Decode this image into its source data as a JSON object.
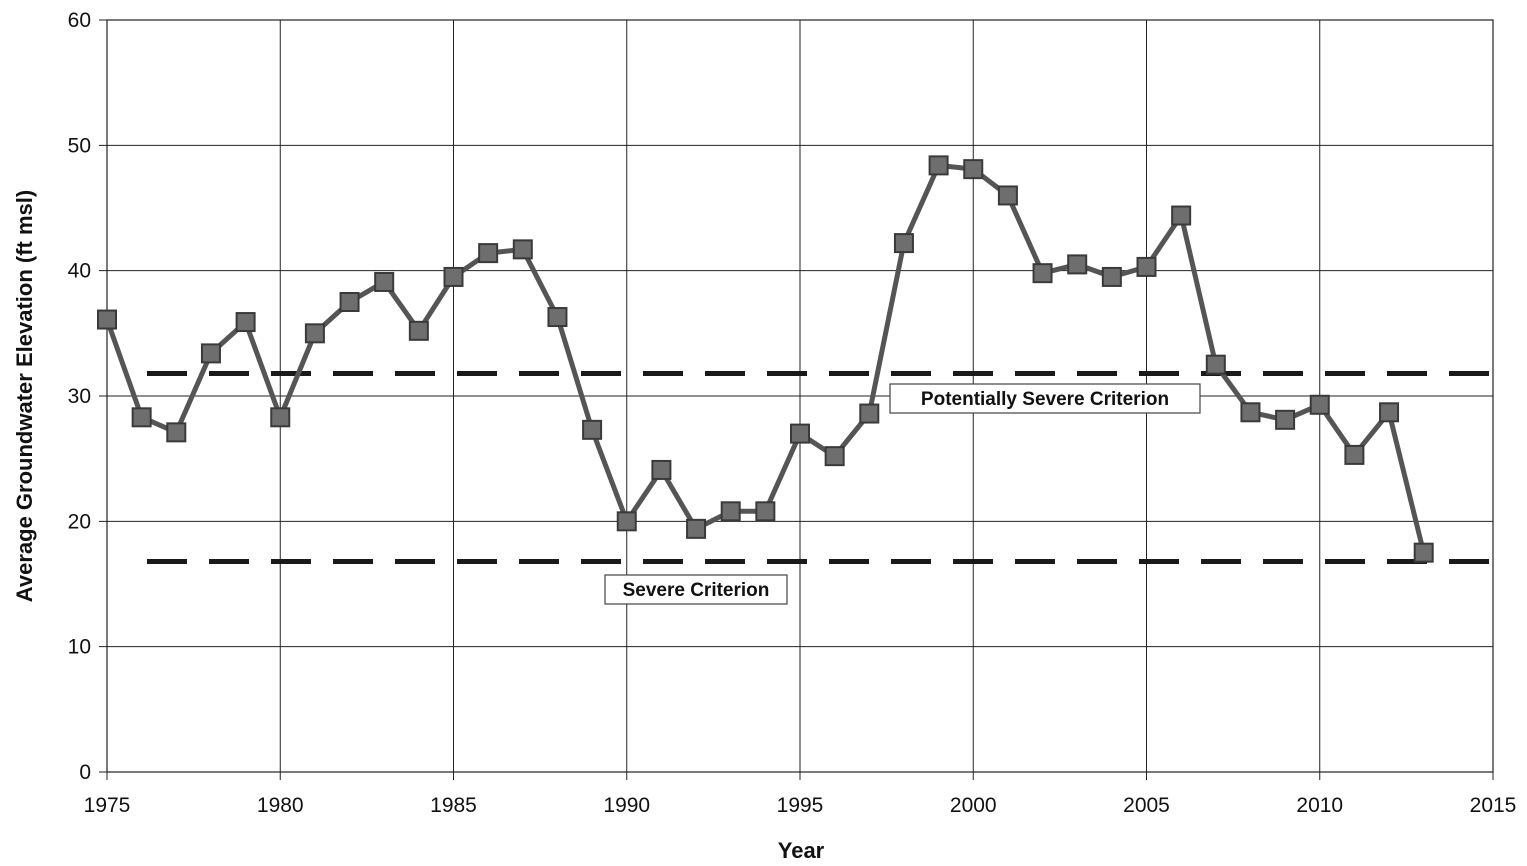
{
  "chart_data": {
    "type": "line",
    "xlabel": "Year",
    "ylabel": "Average Groundwater Elevation (ft msl)",
    "xlim": [
      1975,
      2015
    ],
    "ylim": [
      0,
      60
    ],
    "x_ticks": [
      1975,
      1980,
      1985,
      1990,
      1995,
      2000,
      2005,
      2010,
      2015
    ],
    "y_ticks": [
      0,
      10,
      20,
      30,
      40,
      50,
      60
    ],
    "grid": true,
    "series": [
      {
        "x": [
          1975,
          1976,
          1977,
          1978,
          1979,
          1980,
          1981,
          1982,
          1983,
          1984,
          1985,
          1986,
          1987,
          1988,
          1989,
          1990,
          1991,
          1992,
          1993,
          1994,
          1995,
          1996,
          1997,
          1998,
          1999,
          2000,
          2001,
          2002,
          2003,
          2004,
          2005,
          2006,
          2007,
          2008,
          2009,
          2010,
          2011,
          2012,
          2013
        ],
        "values": [
          36.1,
          28.3,
          27.1,
          33.4,
          35.9,
          28.3,
          35.0,
          37.5,
          39.1,
          35.2,
          39.5,
          41.4,
          41.7,
          36.3,
          27.3,
          20.0,
          24.1,
          19.4,
          20.8,
          20.8,
          27.0,
          25.2,
          28.6,
          42.2,
          48.4,
          48.1,
          46.0,
          39.8,
          40.5,
          39.5,
          40.3,
          44.4,
          32.5,
          28.7,
          28.1,
          29.3,
          25.3,
          28.7,
          17.5
        ]
      }
    ],
    "criteria": [
      {
        "label": "Potentially Severe Criterion",
        "value": 31.8
      },
      {
        "label": "Severe Criterion",
        "value": 16.8
      }
    ],
    "colors": {
      "series": "#555555",
      "marker_fill": "#6e6e6e",
      "marker_stroke": "#3a3a3a",
      "criterion_line": "#1a1a1a",
      "grid": "#222222"
    }
  }
}
